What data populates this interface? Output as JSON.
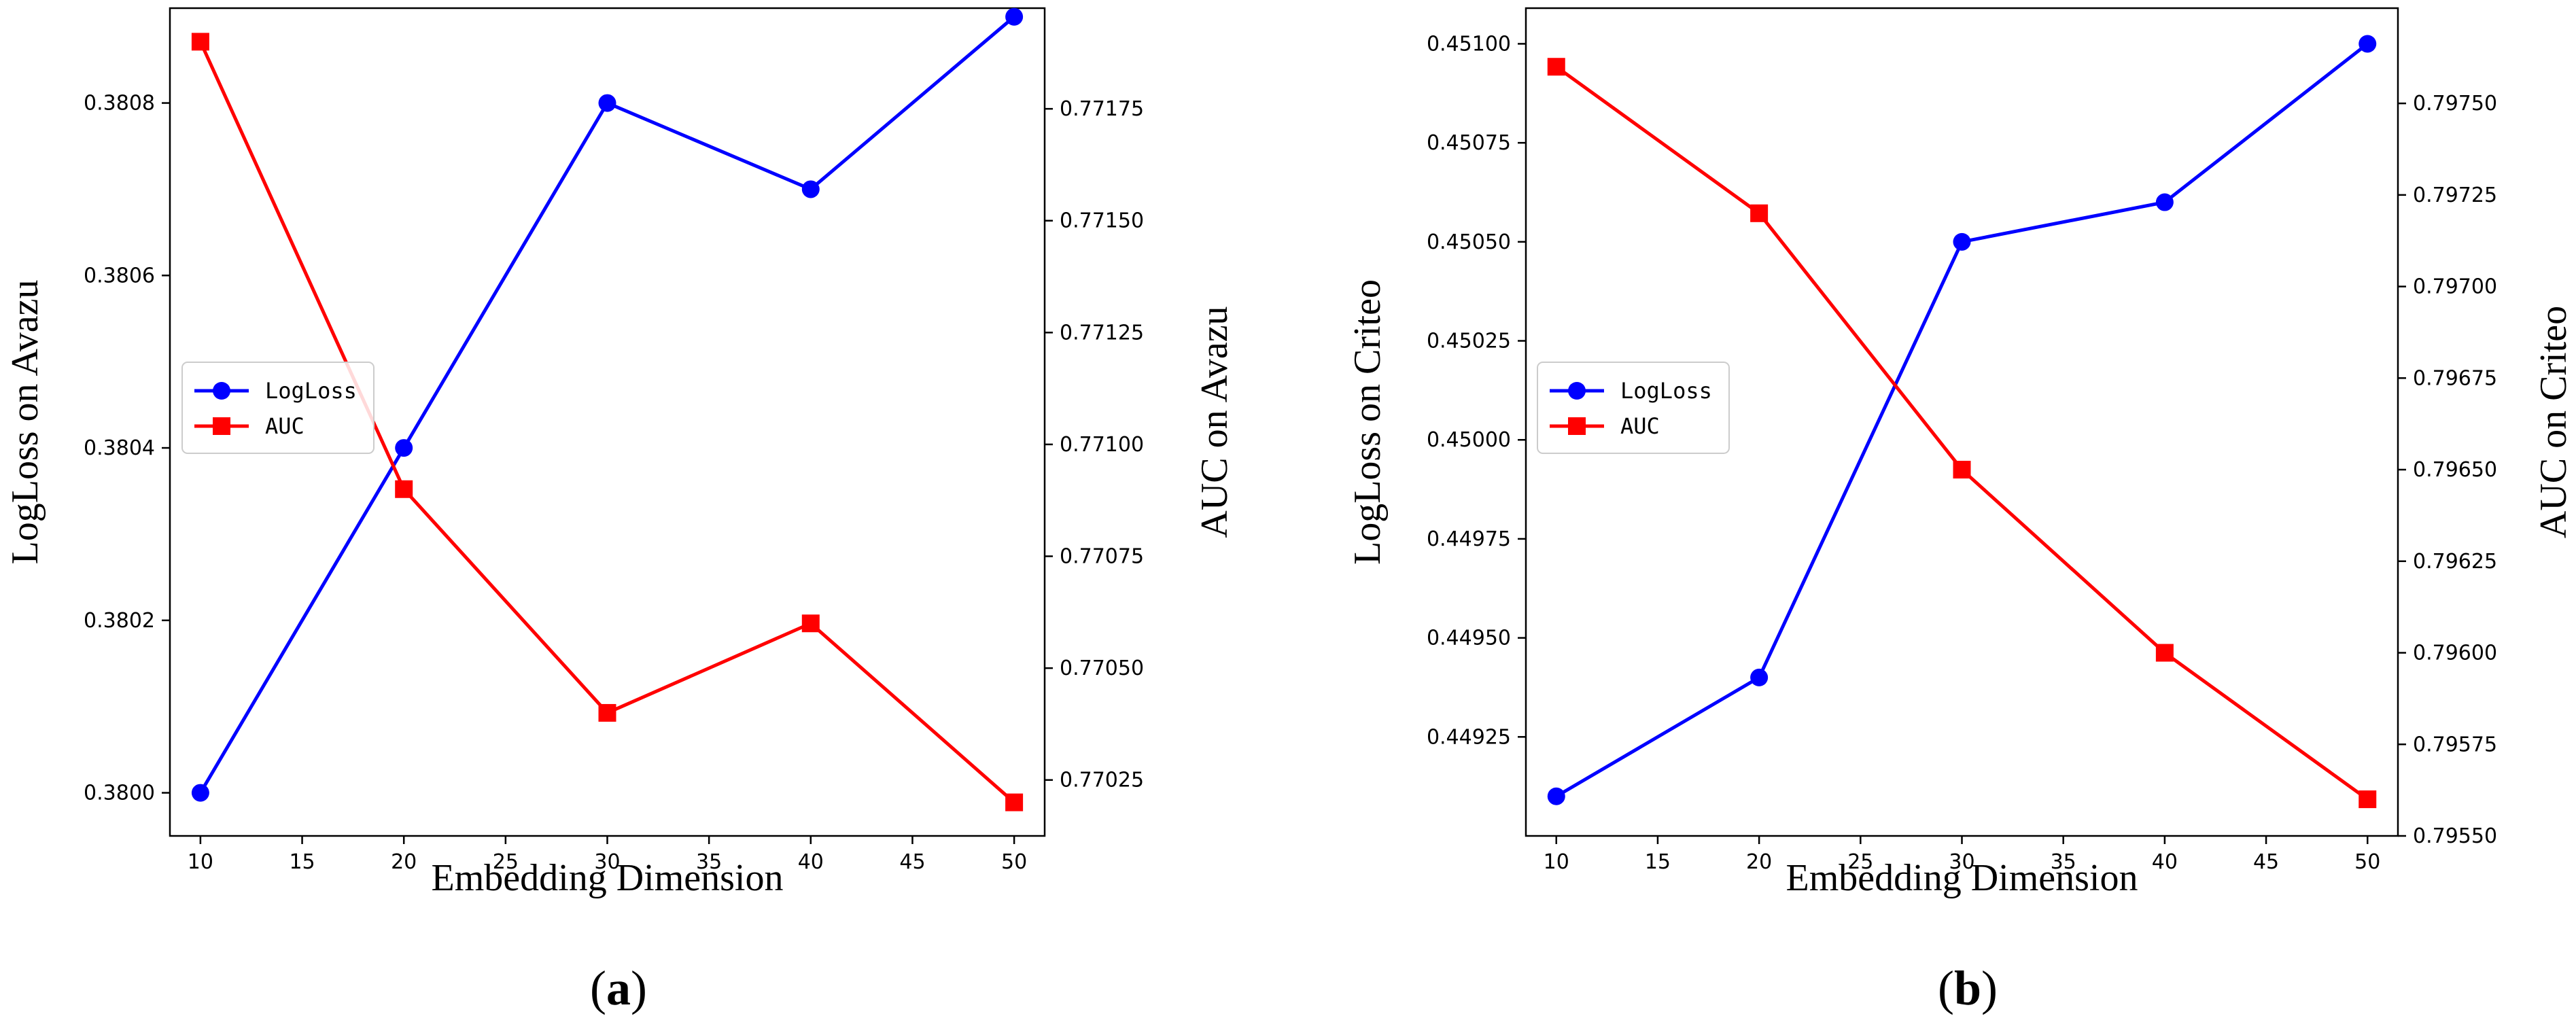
{
  "chart_data": [
    {
      "type": "line",
      "caption": "a",
      "x": [
        10,
        20,
        30,
        40,
        50
      ],
      "xticks": [
        "10",
        "15",
        "20",
        "25",
        "30",
        "35",
        "40",
        "45",
        "50"
      ],
      "xlim": [
        8.5,
        51.5
      ],
      "xlabel": "Embedding  Dimension",
      "ylabel_left": "LogLoss on Avazu",
      "ylabel_right": "AUC on Avazu",
      "ylim_left": [
        0.37995,
        0.38091
      ],
      "ylim_right": [
        0.770125,
        0.771975
      ],
      "yticks_left": [
        "0.3800",
        "0.3802",
        "0.3804",
        "0.3806",
        "0.3808"
      ],
      "yticks_right": [
        "0.77025",
        "0.77050",
        "0.77075",
        "0.77100",
        "0.77125",
        "0.77150",
        "0.77175"
      ],
      "legend_position": "center-left",
      "series": [
        {
          "name": "LogLoss",
          "axis": "left",
          "color": "#0000ff",
          "marker": "circle",
          "values": [
            0.38,
            0.3804,
            0.3808,
            0.3807,
            0.3809
          ]
        },
        {
          "name": "AUC",
          "axis": "right",
          "color": "#ff0000",
          "marker": "square",
          "values": [
            0.7719,
            0.7709,
            0.7704,
            0.7706,
            0.7702
          ]
        }
      ]
    },
    {
      "type": "line",
      "caption": "b",
      "x": [
        10,
        20,
        30,
        40,
        50
      ],
      "xticks": [
        "10",
        "15",
        "20",
        "25",
        "30",
        "35",
        "40",
        "45",
        "50"
      ],
      "xlim": [
        8.5,
        51.5
      ],
      "xlabel": "Embedding Dimension",
      "ylabel_left": "LogLoss on Criteo",
      "ylabel_right": "AUC on Criteo",
      "ylim_left": [
        0.449,
        0.45109
      ],
      "ylim_right": [
        0.7955,
        0.79776
      ],
      "yticks_left": [
        "0.44925",
        "0.44950",
        "0.44975",
        "0.45000",
        "0.45025",
        "0.45050",
        "0.45075",
        "0.45100"
      ],
      "yticks_right": [
        "0.79550",
        "0.79575",
        "0.79600",
        "0.79625",
        "0.79650",
        "0.79675",
        "0.79700",
        "0.79725",
        "0.79750"
      ],
      "legend_position": "center-left",
      "series": [
        {
          "name": "LogLoss",
          "axis": "left",
          "color": "#0000ff",
          "marker": "circle",
          "values": [
            0.4491,
            0.4494,
            0.4505,
            0.4506,
            0.451
          ]
        },
        {
          "name": "AUC",
          "axis": "right",
          "color": "#ff0000",
          "marker": "square",
          "values": [
            0.7976,
            0.7972,
            0.7965,
            0.796,
            0.7956
          ]
        }
      ]
    }
  ]
}
